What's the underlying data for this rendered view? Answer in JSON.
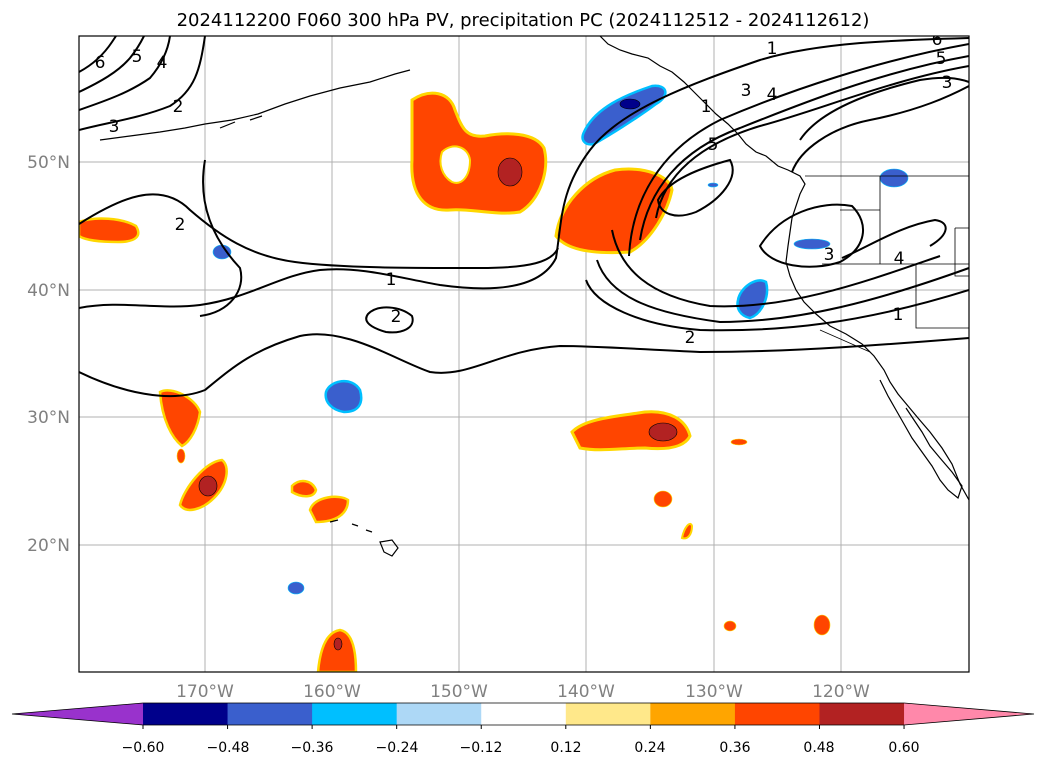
{
  "title": "2024112200 F060 300 hPa PV, precipitation PC (2024112512 - 2024112612)",
  "lat_labels": [
    "50°N",
    "40°N",
    "30°N",
    "20°N"
  ],
  "lon_labels": [
    "170°W",
    "160°W",
    "150°W",
    "140°W",
    "130°W",
    "120°W"
  ],
  "pv_labels": {
    "l1": "1",
    "l2": "1",
    "l3": "1",
    "l4": "1",
    "l5": "2",
    "l6": "2",
    "l7": "2",
    "l8": "2",
    "l9": "3",
    "l10": "3",
    "l11": "3",
    "l12": "3",
    "l13": "4",
    "l14": "4",
    "l15": "4",
    "l16": "5",
    "l17": "5",
    "l18": "5",
    "l19": "6",
    "l20": "6"
  },
  "colorbar": {
    "colors": [
      "#9932cc",
      "#00008b",
      "#3a5fcd",
      "#00bfff",
      "#add8f6",
      "#ffffff",
      "#ffe88a",
      "#ffa500",
      "#ff4500",
      "#b22222",
      "#ff88aa"
    ],
    "ticks": [
      "−0.60",
      "−0.48",
      "−0.36",
      "−0.24",
      "−0.12",
      "0.12",
      "0.24",
      "0.36",
      "0.48",
      "0.60"
    ]
  }
}
